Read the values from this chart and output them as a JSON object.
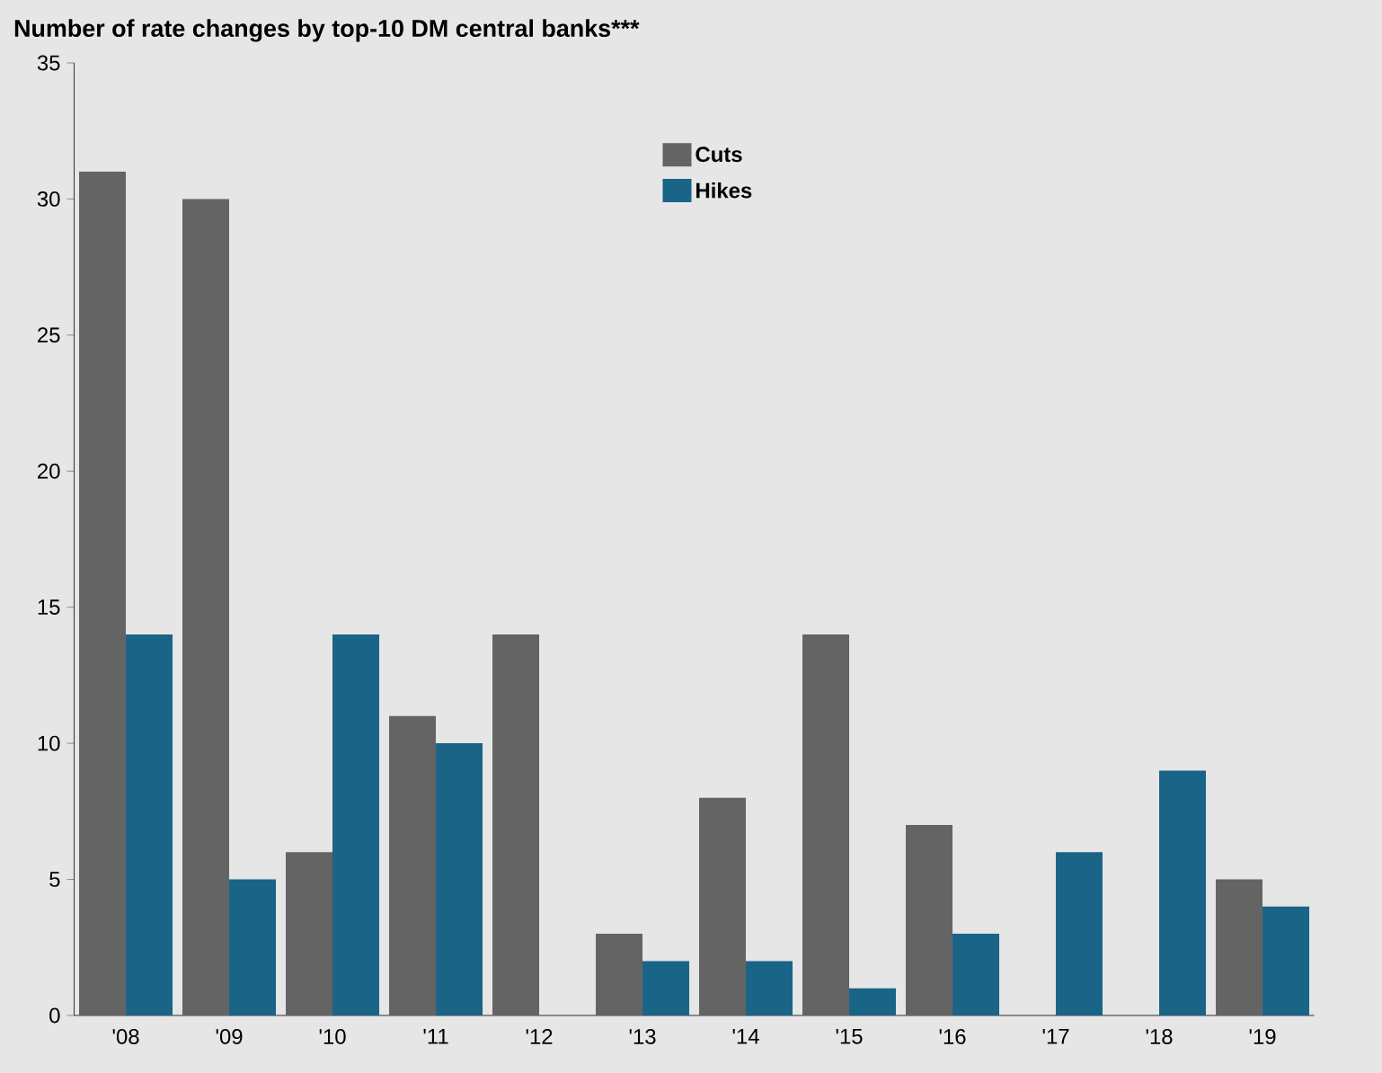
{
  "chart_data": {
    "type": "bar",
    "title": "Number of rate changes by top-10 DM central banks***",
    "categories": [
      "'08",
      "'09",
      "'10",
      "'11",
      "'12",
      "'13",
      "'14",
      "'15",
      "'16",
      "'17",
      "'18",
      "'19"
    ],
    "series": [
      {
        "name": "Cuts",
        "color": "#646464",
        "values": [
          31,
          30,
          6,
          11,
          14,
          3,
          8,
          14,
          7,
          0,
          0,
          5
        ]
      },
      {
        "name": "Hikes",
        "color": "#1a6488",
        "values": [
          14,
          5,
          14,
          10,
          0,
          2,
          2,
          1,
          3,
          6,
          9,
          4
        ]
      }
    ],
    "ylim": [
      0,
      35
    ],
    "yticks": [
      0,
      5,
      10,
      15,
      20,
      25,
      30,
      35
    ],
    "grid": false,
    "legend": "top"
  }
}
